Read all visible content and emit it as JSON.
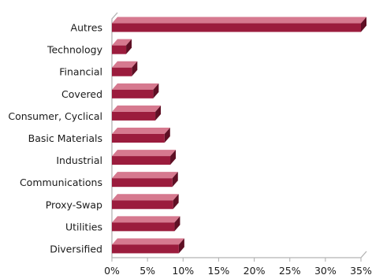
{
  "chart_data": {
    "type": "bar",
    "orientation": "horizontal",
    "categories": [
      "Autres",
      "Technology",
      "Financial",
      "Covered",
      "Consumer, Cyclical",
      "Basic Materials",
      "Industrial",
      "Communications",
      "Proxy-Swap",
      "Utilities",
      "Diversified"
    ],
    "values": [
      35.0,
      2.0,
      2.8,
      5.8,
      6.1,
      7.4,
      8.2,
      8.5,
      8.6,
      8.8,
      9.4
    ],
    "unit": "%",
    "xlim": [
      0,
      35
    ],
    "ticks": [
      "0%",
      "5%",
      "10%",
      "15%",
      "20%",
      "25%",
      "30%",
      "35%"
    ],
    "tick_values": [
      0,
      5,
      10,
      15,
      20,
      25,
      30,
      35
    ],
    "grid": false,
    "legend": "none",
    "title": "",
    "xlabel": "",
    "ylabel": "",
    "colors": {
      "bar": "#9b1c3d",
      "bar_top": "#d6798f",
      "bar_side": "#5e0f24",
      "axis": "#b3b3b3",
      "text": "#1a1a1a"
    }
  }
}
